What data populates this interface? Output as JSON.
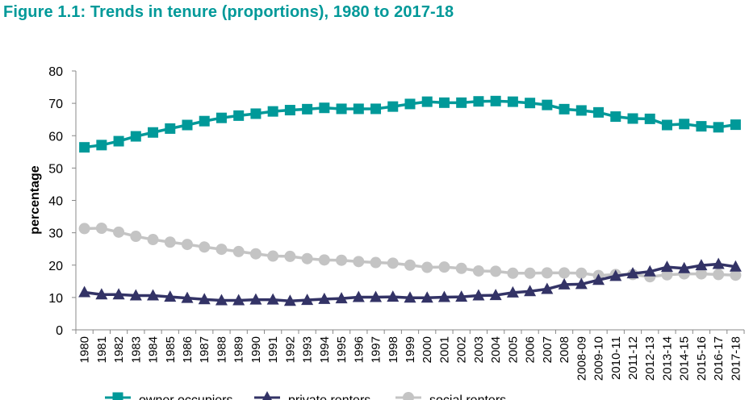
{
  "title": "Figure 1.1: Trends in tenure (proportions), 1980 to 2017-18",
  "chart_data": {
    "type": "line",
    "title": "Figure 1.1: Trends in tenure (proportions), 1980 to 2017-18",
    "xlabel": "",
    "ylabel": "percentage",
    "ylim": [
      0,
      80
    ],
    "yticks": [
      "0",
      "10",
      "20",
      "30",
      "40",
      "50",
      "60",
      "70",
      "80"
    ],
    "grid": false,
    "legend_position": "bottom",
    "categories": [
      "1980",
      "1981",
      "1982",
      "1983",
      "1984",
      "1985",
      "1986",
      "1987",
      "1988",
      "1989",
      "1990",
      "1991",
      "1992",
      "1993",
      "1994",
      "1995",
      "1996",
      "1997",
      "1998",
      "1999",
      "2000",
      "2001",
      "2002",
      "2003",
      "2004",
      "2005",
      "2006",
      "2007",
      "2008",
      "2008-09",
      "2009-10",
      "2010-11",
      "2011-12",
      "2012-13",
      "2013-14",
      "2014-15",
      "2015-16",
      "2016-17",
      "2017-18"
    ],
    "series": [
      {
        "name": "owner occupiers",
        "color": "#009999",
        "marker": "square",
        "values": [
          56.4,
          57.1,
          58.3,
          59.8,
          61.0,
          62.2,
          63.3,
          64.5,
          65.5,
          66.2,
          66.8,
          67.5,
          67.9,
          68.2,
          68.6,
          68.3,
          68.3,
          68.3,
          69.0,
          69.8,
          70.5,
          70.2,
          70.2,
          70.6,
          70.7,
          70.5,
          70.1,
          69.5,
          68.2,
          67.8,
          67.2,
          65.9,
          65.3,
          65.2,
          63.3,
          63.6,
          62.9,
          62.6,
          63.4
        ]
      },
      {
        "name": "private renters",
        "color": "#333366",
        "marker": "triangle",
        "values": [
          11.6,
          10.9,
          10.9,
          10.6,
          10.6,
          10.2,
          9.8,
          9.4,
          9.1,
          9.1,
          9.3,
          9.3,
          8.9,
          9.2,
          9.5,
          9.7,
          10.1,
          10.1,
          10.2,
          9.9,
          9.9,
          10.1,
          10.2,
          10.6,
          10.7,
          11.5,
          11.9,
          12.6,
          14.0,
          14.1,
          15.4,
          16.6,
          17.4,
          18.0,
          19.4,
          19.0,
          19.9,
          20.3,
          19.5
        ]
      },
      {
        "name": "social renters",
        "color": "#c4c4c4",
        "marker": "circle",
        "values": [
          31.3,
          31.4,
          30.2,
          28.9,
          27.9,
          27.1,
          26.4,
          25.6,
          24.9,
          24.2,
          23.5,
          22.8,
          22.7,
          22.0,
          21.6,
          21.5,
          21.1,
          20.8,
          20.6,
          20.0,
          19.3,
          19.4,
          19.0,
          18.2,
          18.1,
          17.5,
          17.5,
          17.6,
          17.6,
          17.5,
          16.8,
          17.1,
          17.1,
          16.4,
          17.0,
          17.3,
          17.3,
          17.1,
          16.9
        ]
      }
    ]
  }
}
